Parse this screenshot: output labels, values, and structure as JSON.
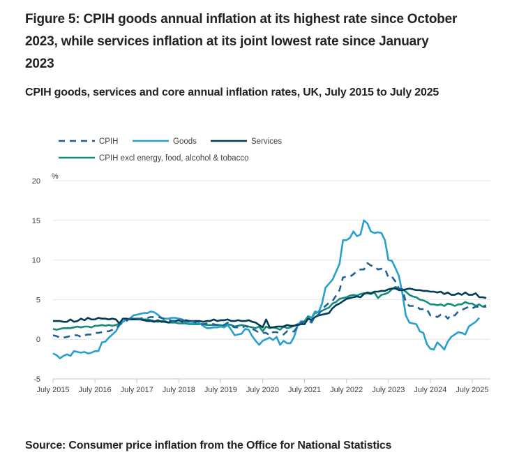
{
  "title": "Figure 5: CPIH goods annual inflation at its highest rate since October 2023, while services inflation at its joint lowest rate since January 2023",
  "subtitle": "CPIH goods, services and core annual inflation rates, UK, July 2015 to July 2025",
  "source": "Source: Consumer price inflation from the Office for National Statistics",
  "chart_data": {
    "type": "line",
    "title": "CPIH goods, services and core annual inflation rates, UK, July 2015 to July 2025",
    "xlabel": "",
    "ylabel": "%",
    "ylim": [
      -5,
      20
    ],
    "yticks": [
      -5,
      0,
      5,
      10,
      15,
      20
    ],
    "xtick_labels": [
      "July 2015",
      "July 2016",
      "July 2017",
      "July 2018",
      "July 2019",
      "July 2020",
      "July 2021",
      "July 2022",
      "July 2023",
      "July 2024",
      "July 2025"
    ],
    "x_start": "July 2015",
    "x_end": "July 2025",
    "frequency": "monthly",
    "grid": true,
    "legend_position": "top-left",
    "series": [
      {
        "name": "CPIH",
        "color": "#206095",
        "style": "dashed",
        "values": [
          0.5,
          0.4,
          0.2,
          0.2,
          0.3,
          0.4,
          0.5,
          0.5,
          0.3,
          0.5,
          0.6,
          0.6,
          0.8,
          0.8,
          0.9,
          1.0,
          1.0,
          1.2,
          1.4,
          1.8,
          2.1,
          2.3,
          2.6,
          2.7,
          2.6,
          2.6,
          2.7,
          2.7,
          2.8,
          2.8,
          2.8,
          2.7,
          2.5,
          2.5,
          2.3,
          2.3,
          2.3,
          2.4,
          2.2,
          2.2,
          2.3,
          2.1,
          1.9,
          1.9,
          2.0,
          2.0,
          1.9,
          1.8,
          1.9,
          1.8,
          2.1,
          1.7,
          1.5,
          1.5,
          1.4,
          1.7,
          1.5,
          1.3,
          1.1,
          0.8,
          0.8,
          0.8,
          0.5,
          0.9,
          0.9,
          0.7,
          0.6,
          1.0,
          0.9,
          1.0,
          1.6,
          2.1,
          2.2,
          2.4,
          2.1,
          2.9,
          3.1,
          3.8,
          4.2,
          4.6,
          4.8,
          5.5,
          6.2,
          7.8,
          7.9,
          7.9,
          8.2,
          8.6,
          8.8,
          8.8,
          9.6,
          9.3,
          9.2,
          8.8,
          8.9,
          8.9,
          7.8,
          7.9,
          7.3,
          6.4,
          6.3,
          4.7,
          4.2,
          4.2,
          4.2,
          3.8,
          3.8,
          3.8,
          3.0,
          3.0,
          2.8,
          3.1,
          3.1,
          2.6,
          3.1,
          3.0,
          3.5,
          3.7,
          3.9,
          4.1,
          3.9,
          4.1,
          4.1,
          4.1,
          4.1
        ]
      },
      {
        "name": "Goods",
        "color": "#27a0cc",
        "style": "solid",
        "values": [
          -1.8,
          -2.0,
          -2.4,
          -2.1,
          -1.9,
          -2.1,
          -1.5,
          -1.6,
          -1.7,
          -1.6,
          -1.8,
          -1.7,
          -1.5,
          -1.5,
          -0.4,
          -0.3,
          0.2,
          0.6,
          1.0,
          1.8,
          2.2,
          2.5,
          2.6,
          3.0,
          3.1,
          3.2,
          3.3,
          3.3,
          3.5,
          3.4,
          3.1,
          2.7,
          2.6,
          2.6,
          2.7,
          2.7,
          2.6,
          2.5,
          2.3,
          2.0,
          2.0,
          2.3,
          2.0,
          1.7,
          1.4,
          1.4,
          1.5,
          1.5,
          1.6,
          1.5,
          1.8,
          1.2,
          0.5,
          0.6,
          0.7,
          1.3,
          1.2,
          0.4,
          -0.2,
          -0.7,
          -0.2,
          0.0,
          0.2,
          -0.1,
          0.3,
          -0.7,
          -0.2,
          -0.5,
          -0.5,
          0.3,
          1.7,
          2.3,
          2.2,
          2.7,
          2.7,
          3.5,
          3.4,
          4.5,
          6.5,
          7.0,
          7.5,
          8.5,
          9.5,
          12.5,
          12.5,
          12.8,
          13.6,
          13.0,
          13.2,
          15.0,
          14.6,
          13.6,
          13.4,
          13.5,
          13.4,
          12.5,
          10.0,
          9.9,
          9.0,
          8.0,
          5.8,
          3.0,
          2.1,
          2.0,
          1.9,
          1.0,
          0.8,
          -0.6,
          -1.2,
          -1.3,
          -0.4,
          -0.8,
          -1.3,
          -0.3,
          0.3,
          0.6,
          0.9,
          0.8,
          0.6,
          1.6,
          1.9,
          2.2,
          2.7
        ]
      },
      {
        "name": "Services",
        "color": "#003c57",
        "style": "solid",
        "values": [
          2.3,
          2.3,
          2.3,
          2.2,
          2.2,
          2.5,
          2.2,
          2.3,
          2.6,
          2.4,
          2.7,
          2.5,
          2.5,
          2.7,
          2.6,
          2.6,
          2.5,
          2.6,
          2.5,
          2.0,
          2.6,
          2.6,
          2.5,
          2.5,
          2.5,
          2.5,
          2.4,
          2.3,
          2.3,
          2.2,
          2.4,
          2.2,
          2.2,
          2.1,
          2.3,
          2.3,
          2.4,
          2.2,
          2.4,
          2.3,
          2.3,
          2.3,
          2.3,
          2.2,
          2.3,
          2.3,
          2.5,
          2.3,
          2.4,
          2.4,
          2.5,
          2.3,
          2.3,
          2.4,
          2.3,
          2.3,
          2.4,
          2.2,
          2.1,
          1.8,
          1.5,
          2.5,
          1.5,
          1.5,
          1.6,
          1.6,
          1.6,
          1.8,
          1.7,
          1.7,
          1.8,
          1.9,
          1.9,
          2.6,
          2.4,
          2.8,
          3.0,
          3.1,
          3.2,
          3.3,
          3.9,
          4.3,
          4.5,
          4.8,
          5.1,
          5.2,
          5.3,
          5.4,
          5.3,
          5.7,
          5.9,
          5.8,
          6.0,
          6.0,
          6.1,
          6.1,
          6.3,
          6.4,
          6.4,
          6.2,
          6.2,
          6.3,
          6.4,
          6.3,
          6.2,
          6.2,
          6.1,
          6.1,
          6.0,
          6.0,
          5.9,
          6.0,
          5.7,
          5.9,
          5.6,
          5.6,
          5.8,
          5.6,
          5.9,
          5.6,
          5.6,
          5.8,
          5.3,
          5.3,
          5.2
        ]
      },
      {
        "name": "CPIH excl energy, food, alcohol & tobacco",
        "color": "#118c7b",
        "style": "solid",
        "values": [
          1.3,
          1.2,
          1.3,
          1.4,
          1.4,
          1.4,
          1.5,
          1.6,
          1.5,
          1.6,
          1.6,
          1.5,
          1.7,
          1.7,
          1.8,
          1.7,
          1.8,
          1.7,
          1.8,
          2.0,
          2.2,
          2.5,
          2.6,
          2.6,
          2.6,
          2.5,
          2.5,
          2.5,
          2.4,
          2.3,
          2.2,
          2.3,
          2.3,
          2.1,
          2.1,
          2.1,
          2.0,
          2.0,
          2.0,
          1.9,
          1.9,
          1.9,
          1.9,
          1.9,
          1.8,
          1.8,
          1.8,
          1.8,
          1.8,
          1.7,
          1.9,
          1.8,
          1.6,
          1.7,
          1.8,
          1.7,
          1.6,
          1.5,
          1.4,
          1.6,
          1.0,
          1.6,
          1.4,
          1.5,
          1.4,
          1.2,
          1.6,
          1.4,
          1.5,
          1.7,
          1.9,
          2.0,
          2.3,
          2.9,
          2.7,
          3.3,
          3.4,
          3.6,
          3.8,
          4.0,
          4.5,
          4.7,
          5.1,
          5.2,
          5.3,
          5.5,
          5.6,
          5.5,
          5.7,
          5.8,
          5.8,
          5.7,
          5.9,
          5.2,
          5.6,
          5.7,
          5.9,
          6.3,
          6.6,
          6.4,
          6.3,
          6.0,
          5.6,
          5.4,
          5.3,
          5.0,
          4.9,
          4.7,
          4.4,
          4.4,
          4.3,
          4.4,
          4.2,
          4.5,
          4.4,
          4.2,
          4.4,
          4.4,
          4.7,
          4.5,
          4.5,
          4.2,
          4.4,
          4.1,
          4.3
        ]
      }
    ]
  }
}
